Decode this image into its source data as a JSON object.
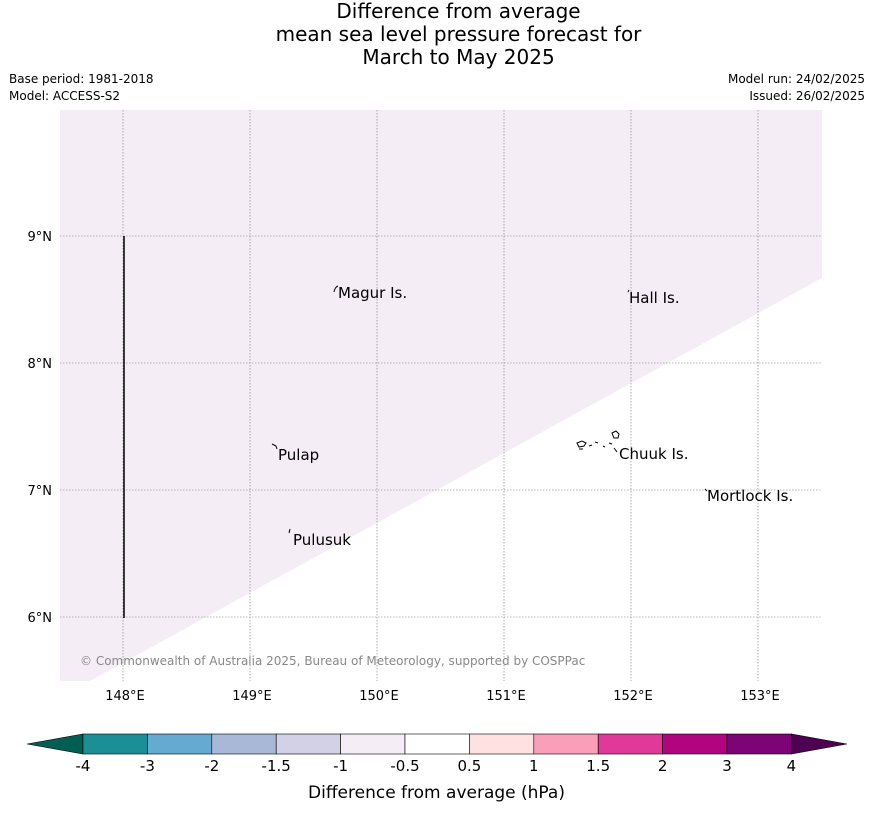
{
  "title": {
    "line1": "Difference from average",
    "line2": "mean sea level pressure forecast for",
    "line3": "March to May 2025"
  },
  "meta": {
    "base_period": "Base period: 1981-2018",
    "model": "Model: ACCESS-S2",
    "model_run": "Model run: 24/02/2025",
    "issued": "Issued: 26/02/2025"
  },
  "map": {
    "lon_labels": [
      "148°E",
      "149°E",
      "150°E",
      "151°E",
      "152°E",
      "153°E"
    ],
    "lat_labels": [
      "9°N",
      "8°N",
      "7°N",
      "6°N"
    ],
    "places": {
      "magur": "Magur Is.",
      "hall": "Hall Is.",
      "pulap": "Pulap",
      "chuuk": "Chuuk Is.",
      "mortlock": "Mortlock Is.",
      "pulusuk": "Pulusuk"
    },
    "copyright": "© Commonwealth of Australia 2025, Bureau of Meteorology, supported by COSPPac",
    "anomaly_fill_color": "#f4edf5",
    "anomaly_range_hpa": [
      -1,
      -0.5
    ]
  },
  "colorbar": {
    "ticks": [
      "-4",
      "-3",
      "-2",
      "-1.5",
      "-1",
      "-0.5",
      "0.5",
      "1",
      "1.5",
      "2",
      "3",
      "4"
    ],
    "colors": [
      "#1b8f95",
      "#65aad1",
      "#a7b8d8",
      "#d2d1e5",
      "#f4edf5",
      "#ffffff",
      "#ffe1e1",
      "#f99fb9",
      "#e0399a",
      "#b3047f",
      "#7c0476"
    ],
    "low_extend_color": "#015e53",
    "high_extend_color": "#4d0251",
    "label": "Difference from average (hPa)"
  }
}
